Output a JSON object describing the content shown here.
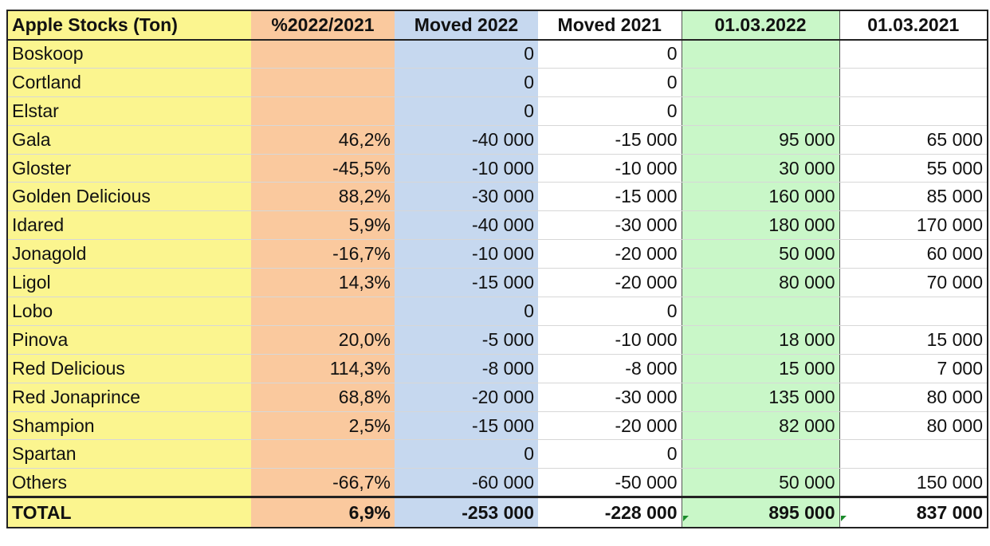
{
  "headers": {
    "name": "Apple Stocks (Ton)",
    "pct": "%2022/2021",
    "moved_2022": "Moved 2022",
    "moved_2021": "Moved 2021",
    "date_2022": "01.03.2022",
    "date_2021": "01.03.2021"
  },
  "rows": [
    {
      "name": "Boskoop",
      "pct": "",
      "moved_2022": "0",
      "moved_2021": "0",
      "date_2022": "",
      "date_2021": ""
    },
    {
      "name": "Cortland",
      "pct": "",
      "moved_2022": "0",
      "moved_2021": "0",
      "date_2022": "",
      "date_2021": ""
    },
    {
      "name": "Elstar",
      "pct": "",
      "moved_2022": "0",
      "moved_2021": "0",
      "date_2022": "",
      "date_2021": ""
    },
    {
      "name": "Gala",
      "pct": "46,2%",
      "moved_2022": "-40 000",
      "moved_2021": "-15 000",
      "date_2022": "95 000",
      "date_2021": "65 000"
    },
    {
      "name": "Gloster",
      "pct": "-45,5%",
      "moved_2022": "-10 000",
      "moved_2021": "-10 000",
      "date_2022": "30 000",
      "date_2021": "55 000"
    },
    {
      "name": "Golden Delicious",
      "pct": "88,2%",
      "moved_2022": "-30 000",
      "moved_2021": "-15 000",
      "date_2022": "160 000",
      "date_2021": "85 000"
    },
    {
      "name": "Idared",
      "pct": "5,9%",
      "moved_2022": "-40 000",
      "moved_2021": "-30 000",
      "date_2022": "180 000",
      "date_2021": "170 000"
    },
    {
      "name": "Jonagold",
      "pct": "-16,7%",
      "moved_2022": "-10 000",
      "moved_2021": "-20 000",
      "date_2022": "50 000",
      "date_2021": "60 000"
    },
    {
      "name": "Ligol",
      "pct": "14,3%",
      "moved_2022": "-15 000",
      "moved_2021": "-20 000",
      "date_2022": "80 000",
      "date_2021": "70 000"
    },
    {
      "name": "Lobo",
      "pct": "",
      "moved_2022": "0",
      "moved_2021": "0",
      "date_2022": "",
      "date_2021": ""
    },
    {
      "name": "Pinova",
      "pct": "20,0%",
      "moved_2022": "-5 000",
      "moved_2021": "-10 000",
      "date_2022": "18 000",
      "date_2021": "15 000"
    },
    {
      "name": "Red Delicious",
      "pct": "114,3%",
      "moved_2022": "-8 000",
      "moved_2021": "-8 000",
      "date_2022": "15 000",
      "date_2021": "7 000"
    },
    {
      "name": "Red Jonaprince",
      "pct": "68,8%",
      "moved_2022": "-20 000",
      "moved_2021": "-30 000",
      "date_2022": "135 000",
      "date_2021": "80 000"
    },
    {
      "name": "Shampion",
      "pct": "2,5%",
      "moved_2022": "-15 000",
      "moved_2021": "-20 000",
      "date_2022": "82 000",
      "date_2021": "80 000"
    },
    {
      "name": "Spartan",
      "pct": "",
      "moved_2022": "0",
      "moved_2021": "0",
      "date_2022": "",
      "date_2021": ""
    },
    {
      "name": "Others",
      "pct": "-66,7%",
      "moved_2022": "-60 000",
      "moved_2021": "-50 000",
      "date_2022": "50 000",
      "date_2021": "150 000"
    }
  ],
  "total": {
    "name": "TOTAL",
    "pct": "6,9%",
    "moved_2022": "-253 000",
    "moved_2021": "-228 000",
    "date_2022": "895 000",
    "date_2021": "837 000"
  },
  "colors": {
    "name_column": "#fbf58f",
    "pct_column": "#fac99e",
    "moved_2022_column": "#c6d8ef",
    "date_2022_column": "#c9f7c8"
  }
}
